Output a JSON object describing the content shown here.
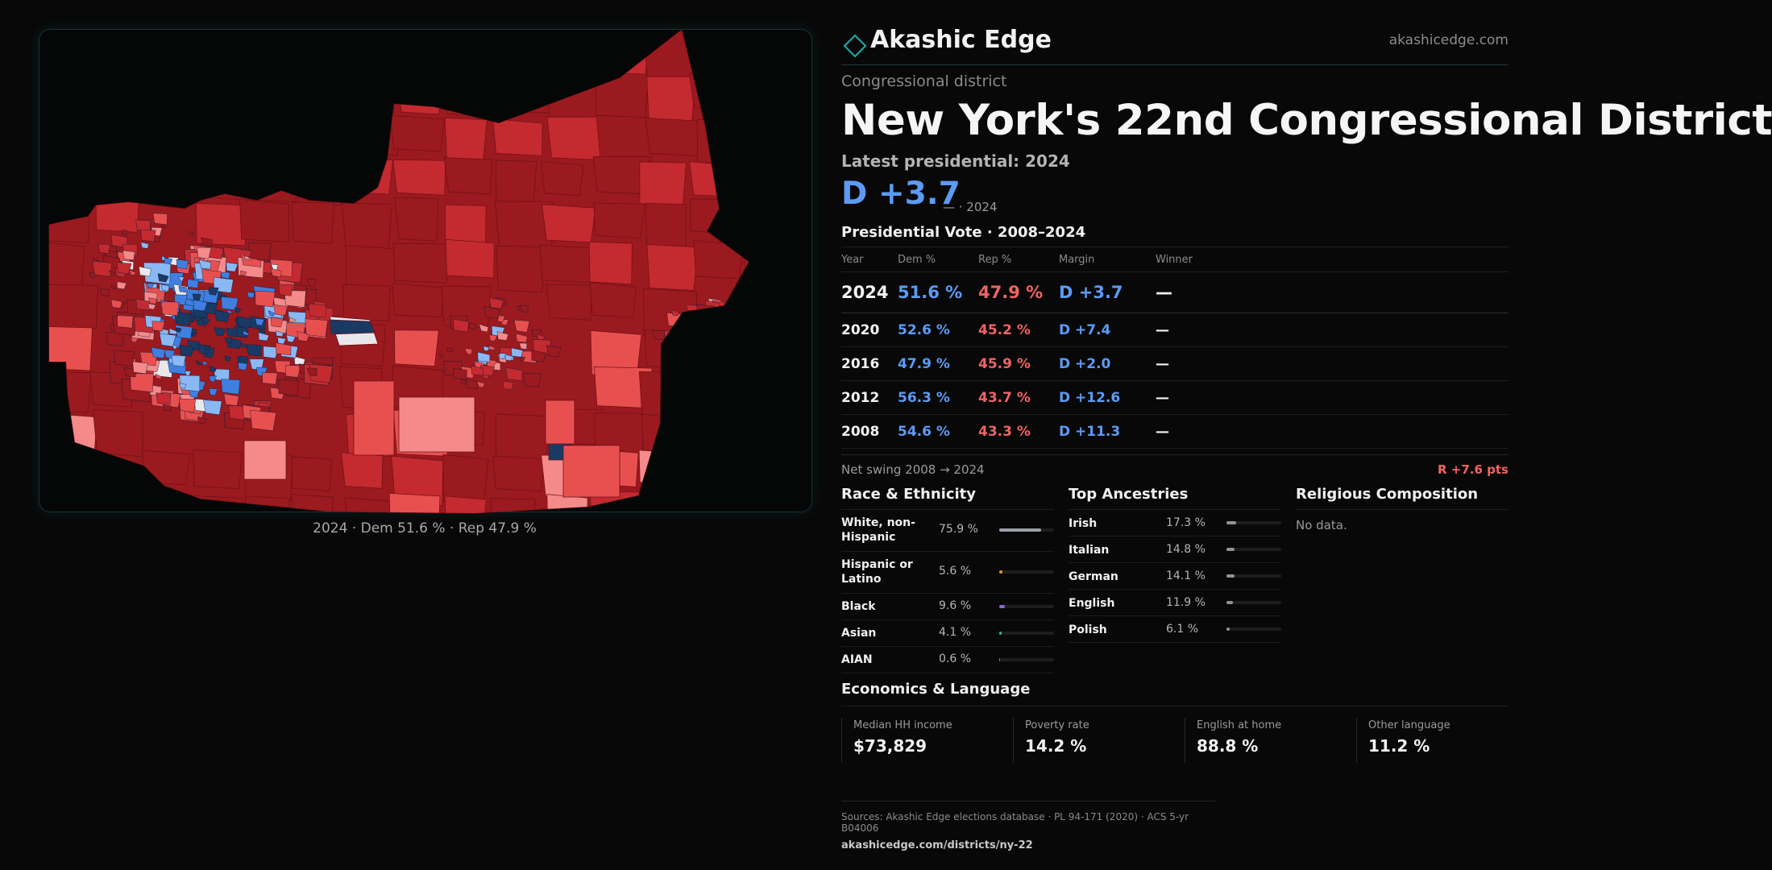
{
  "brand": {
    "name": "Akashic Edge",
    "url": "akashicedge.com"
  },
  "district": {
    "type": "Congressional district",
    "title": "New York's  22nd Congressional District",
    "latest_label": "Latest presidential: 2024",
    "headline_margin": "D +3.7",
    "headline_sub": "— · 2024"
  },
  "map": {
    "caption": "2024 · Dem 51.6 % · Rep 47.9 %",
    "colors": {
      "safe_rep": "#9a1a1f",
      "lean_rep": "#c42a30",
      "tilt_rep": "#e85050",
      "slight_rep": "#f48a8a",
      "toss": "#e8e8ec",
      "slight_dem": "#8ab8f5",
      "lean_dem": "#3f7fe0",
      "safe_dem": "#1a3a66"
    }
  },
  "vote": {
    "heading": "Presidential Vote · 2008–2024",
    "columns": [
      "Year",
      "Dem %",
      "Rep %",
      "Margin",
      "Winner"
    ],
    "rows": [
      {
        "year": "2024",
        "dem": "51.6 %",
        "rep": "47.9 %",
        "margin": "D +3.7",
        "winner": "—"
      },
      {
        "year": "2020",
        "dem": "52.6 %",
        "rep": "45.2 %",
        "margin": "D +7.4",
        "winner": "—"
      },
      {
        "year": "2016",
        "dem": "47.9 %",
        "rep": "45.9 %",
        "margin": "D +2.0",
        "winner": "—"
      },
      {
        "year": "2012",
        "dem": "56.3 %",
        "rep": "43.7 %",
        "margin": "D +12.6",
        "winner": "—"
      },
      {
        "year": "2008",
        "dem": "54.6 %",
        "rep": "43.3 %",
        "margin": "D +11.3",
        "winner": "—"
      }
    ],
    "swing_label": "Net swing 2008 → 2024",
    "swing_value": "R +7.6 pts"
  },
  "race": {
    "heading": "Race & Ethnicity",
    "items": [
      {
        "label": "White, non-Hispanic",
        "value": "75.9 %",
        "pct": 75.9,
        "color": "#9aa0a8"
      },
      {
        "label": "Hispanic or Latino",
        "value": "5.6 %",
        "pct": 5.6,
        "color": "#e0962a"
      },
      {
        "label": "Black",
        "value": "9.6 %",
        "pct": 9.6,
        "color": "#8a6ad8"
      },
      {
        "label": "Asian",
        "value": "4.1 %",
        "pct": 4.1,
        "color": "#2ab88a"
      },
      {
        "label": "AIAN",
        "value": "0.6 %",
        "pct": 0.6,
        "color": "#d85a3a"
      }
    ]
  },
  "ancestry": {
    "heading": "Top Ancestries",
    "items": [
      {
        "label": "Irish",
        "value": "17.3 %",
        "pct": 17.3
      },
      {
        "label": "Italian",
        "value": "14.8 %",
        "pct": 14.8
      },
      {
        "label": "German",
        "value": "14.1 %",
        "pct": 14.1
      },
      {
        "label": "English",
        "value": "11.9 %",
        "pct": 11.9
      },
      {
        "label": "Polish",
        "value": "6.1 %",
        "pct": 6.1
      }
    ],
    "bar_color": "#8e949c"
  },
  "religion": {
    "heading": "Religious Composition",
    "empty": "No data."
  },
  "econ": {
    "heading": "Economics & Language",
    "cells": [
      {
        "label": "Median HH income",
        "value": "$73,829"
      },
      {
        "label": "Poverty rate",
        "value": "14.2 %"
      },
      {
        "label": "English at home",
        "value": "88.8 %"
      },
      {
        "label": "Other language",
        "value": "11.2 %"
      }
    ]
  },
  "sources": {
    "text": "Sources: Akashic Edge elections database · PL 94-171 (2020) · ACS 5-yr B04006",
    "url": "akashicedge.com/districts/ny-22"
  }
}
